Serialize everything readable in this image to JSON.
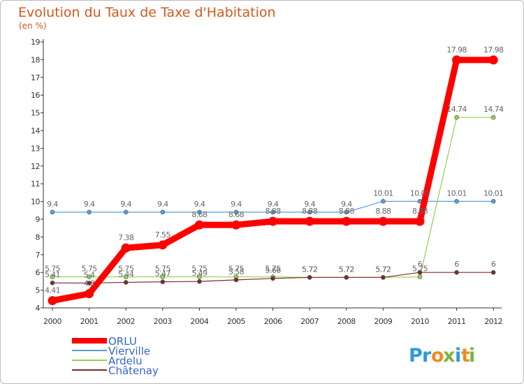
{
  "chart_data": {
    "type": "line",
    "title": "Evolution du Taux de Taxe d'Habitation",
    "subtitle": "(en %)",
    "x": [
      "2000",
      "2001",
      "2002",
      "2003",
      "2004",
      "2005",
      "2006",
      "2007",
      "2008",
      "2009",
      "2010",
      "2011",
      "2012"
    ],
    "ylim": [
      4,
      19
    ],
    "yticks": [
      4,
      5,
      6,
      7,
      8,
      9,
      10,
      11,
      12,
      13,
      14,
      15,
      16,
      17,
      18,
      19
    ],
    "grid": false,
    "legend_position": "bottom-left",
    "series": [
      {
        "name": "ORLU",
        "color": "#ff0000",
        "emphasis": true,
        "values": [
          4.41,
          4.8,
          7.38,
          7.55,
          8.68,
          8.68,
          8.88,
          8.88,
          8.88,
          8.88,
          8.88,
          17.98,
          17.98
        ],
        "labels": [
          "4.41",
          "4.8",
          "7.38",
          "7.55",
          "8.68",
          "8.68",
          "8.88",
          "8.88",
          "8.88",
          "8.88",
          "8.88",
          "17.98",
          "17.98"
        ]
      },
      {
        "name": "Vierville",
        "color": "#5b9bd5",
        "emphasis": false,
        "values": [
          9.4,
          9.4,
          9.4,
          9.4,
          9.4,
          9.4,
          9.4,
          9.4,
          9.4,
          10.01,
          10.01,
          10.01,
          10.01
        ],
        "labels": [
          "9.4",
          "9.4",
          "9.4",
          "9.4",
          "9.4",
          "9.4",
          "9.4",
          "9.4",
          "9.4",
          "10.01",
          "10.01",
          "10.01",
          "10.01"
        ]
      },
      {
        "name": "Ardelu",
        "color": "#92d050",
        "emphasis": false,
        "values": [
          5.75,
          5.75,
          5.75,
          5.75,
          5.75,
          5.75,
          5.75,
          5.72,
          5.72,
          5.72,
          5.75,
          14.74,
          14.74
        ],
        "labels": [
          "5.75",
          "5.75",
          "5.75",
          "5.75",
          "5.75",
          "5.75",
          "5.75",
          "5.72",
          "5.72",
          "5.72",
          "5.75",
          "14.74",
          "14.74"
        ]
      },
      {
        "name": "Châtenay",
        "color": "#7b2c2c",
        "emphasis": false,
        "values": [
          5.41,
          5.4,
          5.44,
          5.47,
          5.49,
          5.58,
          5.66,
          5.72,
          5.72,
          5.72,
          6,
          6,
          6
        ],
        "labels": [
          "5.41",
          "5.4",
          "5.44",
          "5.47",
          "5.49",
          "5.58",
          "5.66",
          "5.72",
          "5.72",
          "5.72",
          "6",
          "6",
          "6"
        ]
      }
    ]
  },
  "brand": {
    "letters": [
      {
        "ch": "P",
        "color": "#2e9bd6"
      },
      {
        "ch": "r",
        "color": "#2e9bd6"
      },
      {
        "ch": "o",
        "color": "#f08a1c"
      },
      {
        "ch": "x",
        "color": "#7cb342"
      },
      {
        "ch": "i",
        "color": "#2e9bd6"
      },
      {
        "ch": "t",
        "color": "#f08a1c"
      },
      {
        "ch": "i",
        "color": "#7cb342"
      }
    ]
  }
}
